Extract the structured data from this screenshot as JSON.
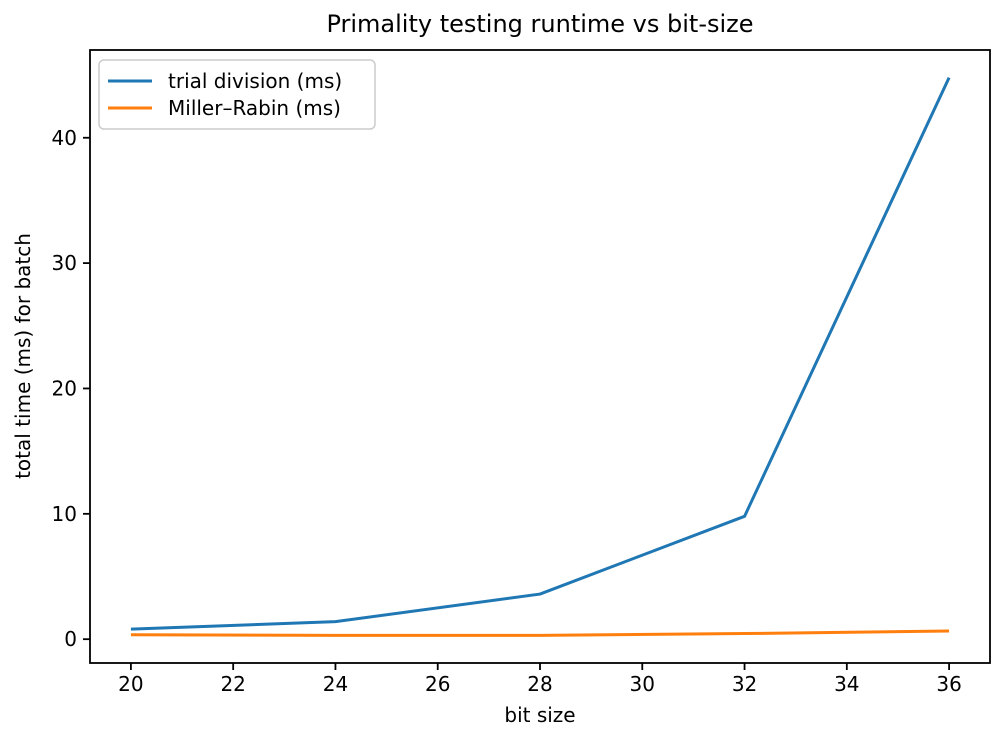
{
  "chart_data": {
    "type": "line",
    "title": "Primality testing runtime vs bit-size",
    "xlabel": "bit size",
    "ylabel": "total time (ms) for batch",
    "x": [
      20,
      24,
      28,
      32,
      36
    ],
    "series": [
      {
        "name": "trial division (ms)",
        "color": "#1f77b4",
        "values": [
          0.8,
          1.4,
          3.6,
          9.8,
          44.8
        ]
      },
      {
        "name": "Miller–Rabin (ms)",
        "color": "#ff7f0e",
        "values": [
          0.35,
          0.3,
          0.3,
          0.45,
          0.65
        ]
      }
    ],
    "xticks": [
      20,
      22,
      24,
      26,
      28,
      30,
      32,
      34,
      36
    ],
    "yticks": [
      0,
      10,
      20,
      30,
      40
    ],
    "xlim": [
      19.2,
      36.8
    ],
    "ylim": [
      -1.9,
      47.0
    ],
    "grid": false,
    "legend": {
      "position": "upper-left"
    },
    "colors": {
      "axes": "#000000",
      "legend_border": "#cccccc",
      "background": "#ffffff"
    }
  }
}
